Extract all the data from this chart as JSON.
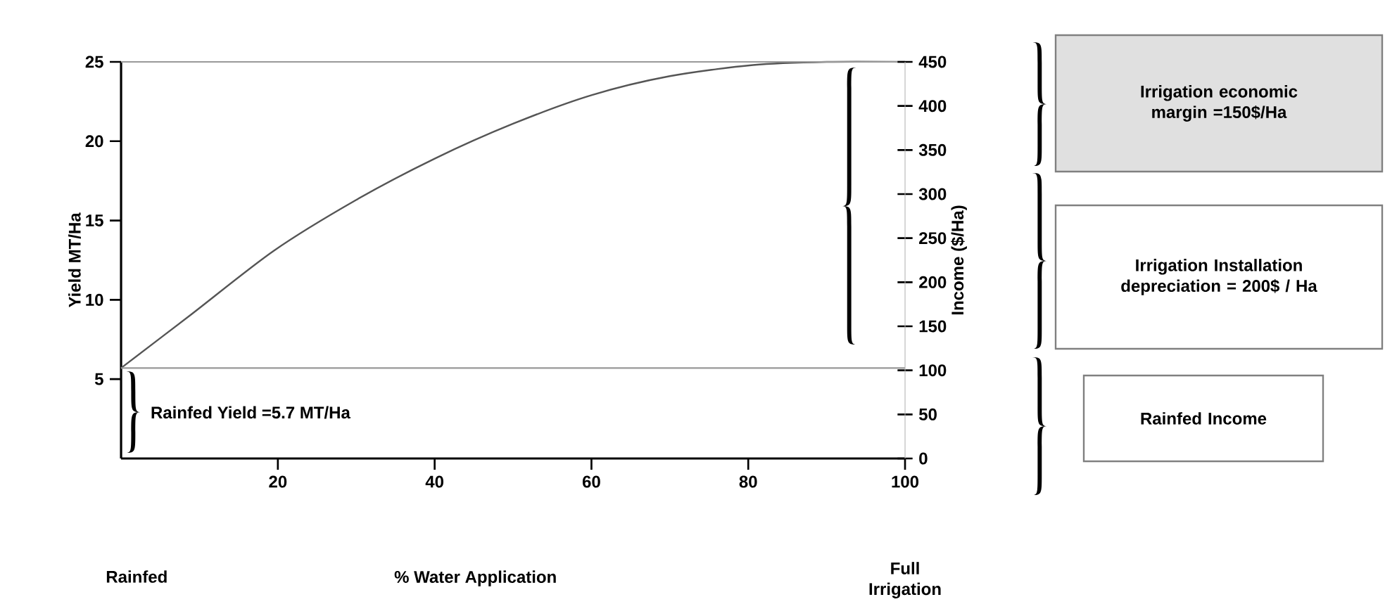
{
  "chart_data": {
    "type": "line",
    "xlabel": "% Water Application",
    "ylabel": "Yield MT/Ha",
    "y2label": "Income ($/Ha)",
    "xlim": [
      0,
      100
    ],
    "xticks": [
      20,
      40,
      60,
      80,
      100
    ],
    "ylim": [
      0,
      25
    ],
    "yticks": [
      5,
      10,
      15,
      20,
      25
    ],
    "y2lim": [
      0,
      450
    ],
    "y2ticks": [
      0,
      50,
      100,
      150,
      200,
      250,
      300,
      350,
      400,
      450
    ],
    "x": [
      0,
      9,
      19.5,
      30,
      40,
      50,
      60,
      70,
      80.6,
      90,
      100
    ],
    "series": [
      {
        "color": "#555555",
        "values": [
          5.7,
          9.1,
          13.1,
          16.3,
          18.9,
          21.1,
          22.9,
          24.1,
          24.8,
          25,
          25
        ]
      }
    ],
    "ref_lines": [
      {
        "axis": "y",
        "value": 25,
        "color": "#999999"
      },
      {
        "axis": "y",
        "value": 5.7,
        "color": "#999999"
      }
    ],
    "annotations": [
      "Rainfed Yield =5.7 MT/Ha",
      "Rainfed",
      "Full Irrigation",
      "Irrigation economic margin =150$/Ha",
      "Irrigation Installation depreciation = 200$ / Ha",
      "Rainfed Income"
    ],
    "grid": false,
    "marker": "none",
    "line_style": "solid"
  }
}
